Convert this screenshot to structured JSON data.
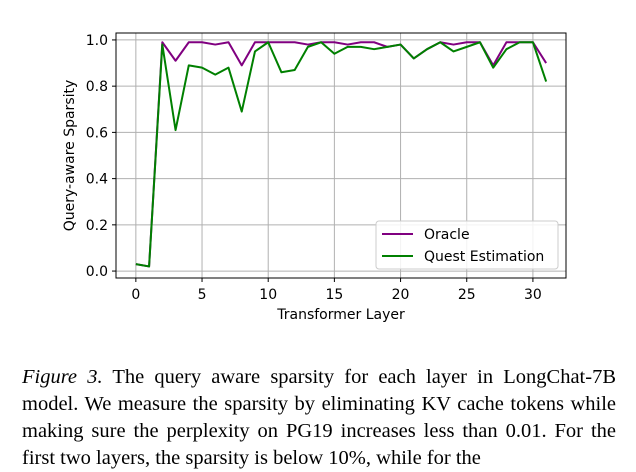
{
  "chart_data": {
    "type": "line",
    "title": "",
    "xlabel": "Transformer Layer",
    "ylabel": "Query-aware Sparsity",
    "xlim": [
      -1.5,
      32.5
    ],
    "ylim": [
      -0.03,
      1.03
    ],
    "xticks": [
      0,
      5,
      10,
      15,
      20,
      25,
      30
    ],
    "yticks": [
      0.0,
      0.2,
      0.4,
      0.6,
      0.8,
      1.0
    ],
    "xtick_labels": [
      "0",
      "5",
      "10",
      "15",
      "20",
      "25",
      "30"
    ],
    "ytick_labels": [
      "0.0",
      "0.2",
      "0.4",
      "0.6",
      "0.8",
      "1.0"
    ],
    "grid": true,
    "legend_position": "lower-right",
    "x": [
      0,
      1,
      2,
      3,
      4,
      5,
      6,
      7,
      8,
      9,
      10,
      11,
      12,
      13,
      14,
      15,
      16,
      17,
      18,
      19,
      20,
      21,
      22,
      23,
      24,
      25,
      26,
      27,
      28,
      29,
      30,
      31
    ],
    "series": [
      {
        "name": "Oracle",
        "color": "#800080",
        "values": [
          0.03,
          0.02,
          0.99,
          0.91,
          0.99,
          0.99,
          0.98,
          0.99,
          0.89,
          0.99,
          0.99,
          0.99,
          0.99,
          0.98,
          0.99,
          0.99,
          0.98,
          0.99,
          0.99,
          0.97,
          0.98,
          0.92,
          0.96,
          0.99,
          0.98,
          0.99,
          0.99,
          0.89,
          0.99,
          0.99,
          0.99,
          0.9
        ]
      },
      {
        "name": "Quest Estimation",
        "color": "#008000",
        "values": [
          0.03,
          0.02,
          0.98,
          0.61,
          0.89,
          0.88,
          0.85,
          0.88,
          0.69,
          0.95,
          0.99,
          0.86,
          0.87,
          0.97,
          0.99,
          0.94,
          0.97,
          0.97,
          0.96,
          0.97,
          0.98,
          0.92,
          0.96,
          0.99,
          0.95,
          0.97,
          0.99,
          0.88,
          0.96,
          0.99,
          0.99,
          0.82
        ]
      }
    ]
  },
  "caption": {
    "label": "Figure 3.",
    "text": " The query aware sparsity for each layer in LongChat-7B model. We measure the sparsity by eliminating KV cache tokens while making sure the perplexity on PG19 increases less than 0.01. For the first two layers, the sparsity is below 10%, while for the"
  }
}
